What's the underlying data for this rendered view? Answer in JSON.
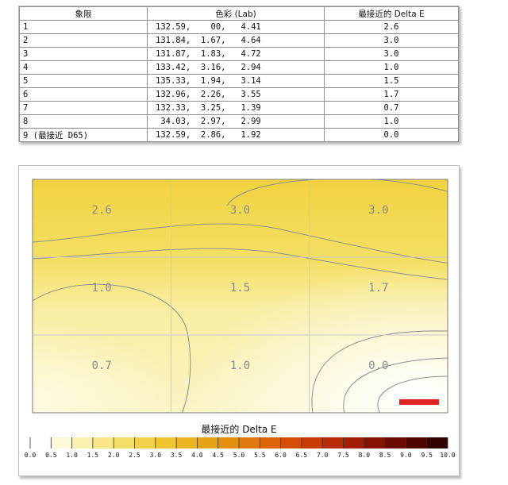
{
  "table": {
    "headers": [
      "象限",
      "色彩 (Lab)",
      "最接近的 Delta E"
    ],
    "rows": [
      {
        "quadrant": "1",
        "lab": "132.59,    00,   4.41",
        "delta_e": "2.6"
      },
      {
        "quadrant": "2",
        "lab": "131.84,  1.67,   4.64",
        "delta_e": "3.0"
      },
      {
        "quadrant": "3",
        "lab": "131.87,  1.83,   4.72",
        "delta_e": "3.0"
      },
      {
        "quadrant": "4",
        "lab": "133.42,  3.16,   2.94",
        "delta_e": "1.0"
      },
      {
        "quadrant": "5",
        "lab": "135.33,  1.94,   3.14",
        "delta_e": "1.5"
      },
      {
        "quadrant": "6",
        "lab": "132.96,  2.26,   3.55",
        "delta_e": "1.7"
      },
      {
        "quadrant": "7",
        "lab": "132.33,  3.25,   1.39",
        "delta_e": "0.7"
      },
      {
        "quadrant": "8",
        "lab": " 34.03,  2.97,   2.99",
        "delta_e": "1.0"
      },
      {
        "quadrant": "9 (最接近 D65)",
        "lab": "132.59,  2.86,   1.92",
        "delta_e": "0.0"
      }
    ]
  },
  "chart_data": {
    "type": "heatmap",
    "title": "最接近的 Delta E",
    "grid": {
      "rows": 3,
      "cols": 3,
      "gridlines": true
    },
    "values": [
      [
        2.6,
        3.0,
        3.0
      ],
      [
        1.0,
        1.5,
        1.7
      ],
      [
        0.7,
        1.0,
        0.0
      ]
    ],
    "value_labels": [
      [
        "2.6",
        "3.0",
        "3.0"
      ],
      [
        "1.0",
        "1.5",
        "1.7"
      ],
      [
        "0.7",
        "1.0",
        "0.0"
      ]
    ],
    "contours": true,
    "marker_color": "#e02424",
    "colorbar": {
      "range": [
        0,
        10
      ],
      "ticks": [
        "0.0",
        "0.5",
        "1.0",
        "1.5",
        "2.0",
        "2.5",
        "3.0",
        "3.5",
        "4.0",
        "4.5",
        "5.0",
        "5.5",
        "6.0",
        "6.5",
        "7.0",
        "7.5",
        "8.0",
        "8.5",
        "9.0",
        "9.5",
        "10.0"
      ],
      "colors": [
        "#ffffff",
        "#fdf9d6",
        "#fbf1ae",
        "#f8e88a",
        "#f5de66",
        "#f2d24a",
        "#efc630",
        "#ecb61e",
        "#e8a314",
        "#e58f0f",
        "#e17a0c",
        "#dc6409",
        "#d54e07",
        "#c93b05",
        "#b82a04",
        "#a11d03",
        "#871302",
        "#6b0b01",
        "#4f0601",
        "#330301",
        "#150000"
      ]
    }
  }
}
